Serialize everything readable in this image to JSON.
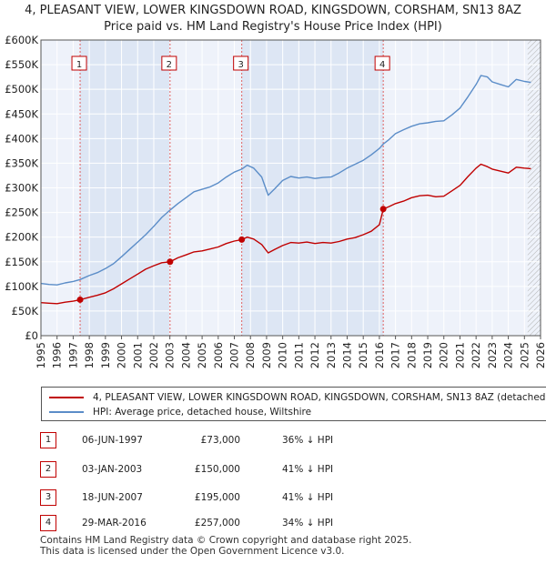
{
  "header": {
    "title_line1": "4, PLEASANT VIEW, LOWER KINGSDOWN ROAD, KINGSDOWN, CORSHAM, SN13 8AZ",
    "title_line2": "Price paid vs. HM Land Registry's House Price Index (HPI)"
  },
  "chart_data": {
    "type": "line",
    "x_label": "",
    "y_label": "",
    "xlim": [
      1995,
      2026
    ],
    "ylim": [
      0,
      600000
    ],
    "y_ticks": [
      {
        "value": 0,
        "label": "£0"
      },
      {
        "value": 50000,
        "label": "£50K"
      },
      {
        "value": 100000,
        "label": "£100K"
      },
      {
        "value": 150000,
        "label": "£150K"
      },
      {
        "value": 200000,
        "label": "£200K"
      },
      {
        "value": 250000,
        "label": "£250K"
      },
      {
        "value": 300000,
        "label": "£300K"
      },
      {
        "value": 350000,
        "label": "£350K"
      },
      {
        "value": 400000,
        "label": "£400K"
      },
      {
        "value": 450000,
        "label": "£450K"
      },
      {
        "value": 500000,
        "label": "£500K"
      },
      {
        "value": 550000,
        "label": "£550K"
      },
      {
        "value": 600000,
        "label": "£600K"
      }
    ],
    "x_ticks": [
      "1995",
      "1996",
      "1997",
      "1998",
      "1999",
      "2000",
      "2001",
      "2002",
      "2003",
      "2004",
      "2005",
      "2006",
      "2007",
      "2008",
      "2009",
      "2010",
      "2011",
      "2012",
      "2013",
      "2014",
      "2015",
      "2016",
      "2017",
      "2018",
      "2019",
      "2020",
      "2021",
      "2022",
      "2023",
      "2024",
      "2025",
      "2026"
    ],
    "grid": true,
    "projection_start": 2025.2,
    "series": [
      {
        "name": "4, PLEASANT VIEW, LOWER KINGSDOWN ROAD, KINGSDOWN, CORSHAM, SN13 8AZ (detached house)",
        "color": "#c00000",
        "points": [
          [
            1995.0,
            67000
          ],
          [
            1995.5,
            66000
          ],
          [
            1996.0,
            65000
          ],
          [
            1996.5,
            68000
          ],
          [
            1997.0,
            70000
          ],
          [
            1997.43,
            73000
          ],
          [
            1998.0,
            78000
          ],
          [
            1998.5,
            82000
          ],
          [
            1999.0,
            87000
          ],
          [
            1999.5,
            95000
          ],
          [
            2000.0,
            105000
          ],
          [
            2000.5,
            115000
          ],
          [
            2001.0,
            125000
          ],
          [
            2001.5,
            135000
          ],
          [
            2002.0,
            142000
          ],
          [
            2002.5,
            148000
          ],
          [
            2003.01,
            150000
          ],
          [
            2003.5,
            158000
          ],
          [
            2004.0,
            164000
          ],
          [
            2004.5,
            170000
          ],
          [
            2005.0,
            172000
          ],
          [
            2005.5,
            176000
          ],
          [
            2006.0,
            180000
          ],
          [
            2006.5,
            187000
          ],
          [
            2007.0,
            192000
          ],
          [
            2007.46,
            195000
          ],
          [
            2007.8,
            200000
          ],
          [
            2008.2,
            196000
          ],
          [
            2008.7,
            185000
          ],
          [
            2009.1,
            168000
          ],
          [
            2009.5,
            175000
          ],
          [
            2010.0,
            183000
          ],
          [
            2010.5,
            189000
          ],
          [
            2011.0,
            188000
          ],
          [
            2011.5,
            190000
          ],
          [
            2012.0,
            187000
          ],
          [
            2012.5,
            189000
          ],
          [
            2013.0,
            188000
          ],
          [
            2013.5,
            191000
          ],
          [
            2014.0,
            196000
          ],
          [
            2014.5,
            199000
          ],
          [
            2015.0,
            205000
          ],
          [
            2015.5,
            212000
          ],
          [
            2016.0,
            225000
          ],
          [
            2016.24,
            257000
          ],
          [
            2016.6,
            262000
          ],
          [
            2017.0,
            268000
          ],
          [
            2017.5,
            273000
          ],
          [
            2018.0,
            280000
          ],
          [
            2018.5,
            284000
          ],
          [
            2019.0,
            285000
          ],
          [
            2019.5,
            282000
          ],
          [
            2020.0,
            283000
          ],
          [
            2020.5,
            294000
          ],
          [
            2021.0,
            305000
          ],
          [
            2021.5,
            323000
          ],
          [
            2022.0,
            340000
          ],
          [
            2022.3,
            348000
          ],
          [
            2022.7,
            343000
          ],
          [
            2023.0,
            338000
          ],
          [
            2023.5,
            334000
          ],
          [
            2024.0,
            330000
          ],
          [
            2024.5,
            342000
          ],
          [
            2025.0,
            340000
          ],
          [
            2025.4,
            339000
          ]
        ]
      },
      {
        "name": "HPI: Average price, detached house, Wiltshire",
        "color": "#5b8dc8",
        "points": [
          [
            1995.0,
            106000
          ],
          [
            1995.5,
            104000
          ],
          [
            1996.0,
            103000
          ],
          [
            1996.5,
            107000
          ],
          [
            1997.0,
            110000
          ],
          [
            1997.43,
            114000
          ],
          [
            1998.0,
            122000
          ],
          [
            1998.5,
            128000
          ],
          [
            1999.0,
            136000
          ],
          [
            1999.5,
            146000
          ],
          [
            2000.0,
            160000
          ],
          [
            2000.5,
            175000
          ],
          [
            2001.0,
            190000
          ],
          [
            2001.5,
            205000
          ],
          [
            2002.0,
            222000
          ],
          [
            2002.5,
            240000
          ],
          [
            2003.01,
            255000
          ],
          [
            2003.5,
            268000
          ],
          [
            2004.0,
            280000
          ],
          [
            2004.5,
            292000
          ],
          [
            2005.0,
            297000
          ],
          [
            2005.5,
            302000
          ],
          [
            2006.0,
            310000
          ],
          [
            2006.5,
            322000
          ],
          [
            2007.0,
            332000
          ],
          [
            2007.46,
            338000
          ],
          [
            2007.8,
            346000
          ],
          [
            2008.2,
            340000
          ],
          [
            2008.7,
            322000
          ],
          [
            2009.1,
            285000
          ],
          [
            2009.5,
            298000
          ],
          [
            2010.0,
            315000
          ],
          [
            2010.5,
            323000
          ],
          [
            2011.0,
            320000
          ],
          [
            2011.5,
            322000
          ],
          [
            2012.0,
            319000
          ],
          [
            2012.5,
            321000
          ],
          [
            2013.0,
            322000
          ],
          [
            2013.5,
            330000
          ],
          [
            2014.0,
            340000
          ],
          [
            2014.5,
            348000
          ],
          [
            2015.0,
            356000
          ],
          [
            2015.5,
            367000
          ],
          [
            2016.0,
            380000
          ],
          [
            2016.24,
            389000
          ],
          [
            2016.6,
            398000
          ],
          [
            2017.0,
            410000
          ],
          [
            2017.5,
            418000
          ],
          [
            2018.0,
            425000
          ],
          [
            2018.5,
            430000
          ],
          [
            2019.0,
            432000
          ],
          [
            2019.5,
            435000
          ],
          [
            2020.0,
            436000
          ],
          [
            2020.5,
            448000
          ],
          [
            2021.0,
            462000
          ],
          [
            2021.5,
            485000
          ],
          [
            2022.0,
            510000
          ],
          [
            2022.3,
            528000
          ],
          [
            2022.7,
            525000
          ],
          [
            2023.0,
            515000
          ],
          [
            2023.5,
            510000
          ],
          [
            2024.0,
            505000
          ],
          [
            2024.5,
            520000
          ],
          [
            2025.0,
            516000
          ],
          [
            2025.4,
            514000
          ]
        ]
      }
    ],
    "sales": [
      {
        "id": "1",
        "x": 1997.43,
        "price": 73000
      },
      {
        "id": "2",
        "x": 2003.01,
        "price": 150000
      },
      {
        "id": "3",
        "x": 2007.46,
        "price": 195000
      },
      {
        "id": "4",
        "x": 2016.24,
        "price": 257000
      }
    ]
  },
  "legend": {
    "property_label": "4, PLEASANT VIEW, LOWER KINGSDOWN ROAD, KINGSDOWN, CORSHAM, SN13 8AZ (detached house)",
    "property_color": "#c00000",
    "hpi_label": "HPI: Average price, detached house, Wiltshire",
    "hpi_color": "#5b8dc8"
  },
  "transactions": [
    {
      "num": "1",
      "date": "06-JUN-1997",
      "price": "£73,000",
      "hpi": "36% ↓ HPI"
    },
    {
      "num": "2",
      "date": "03-JAN-2003",
      "price": "£150,000",
      "hpi": "41% ↓ HPI"
    },
    {
      "num": "3",
      "date": "18-JUN-2007",
      "price": "£195,000",
      "hpi": "41% ↓ HPI"
    },
    {
      "num": "4",
      "date": "29-MAR-2016",
      "price": "£257,000",
      "hpi": "34% ↓ HPI"
    }
  ],
  "footer": {
    "line1": "Contains HM Land Registry data © Crown copyright and database right 2025.",
    "line2": "This data is licensed under the Open Government Licence v3.0."
  }
}
